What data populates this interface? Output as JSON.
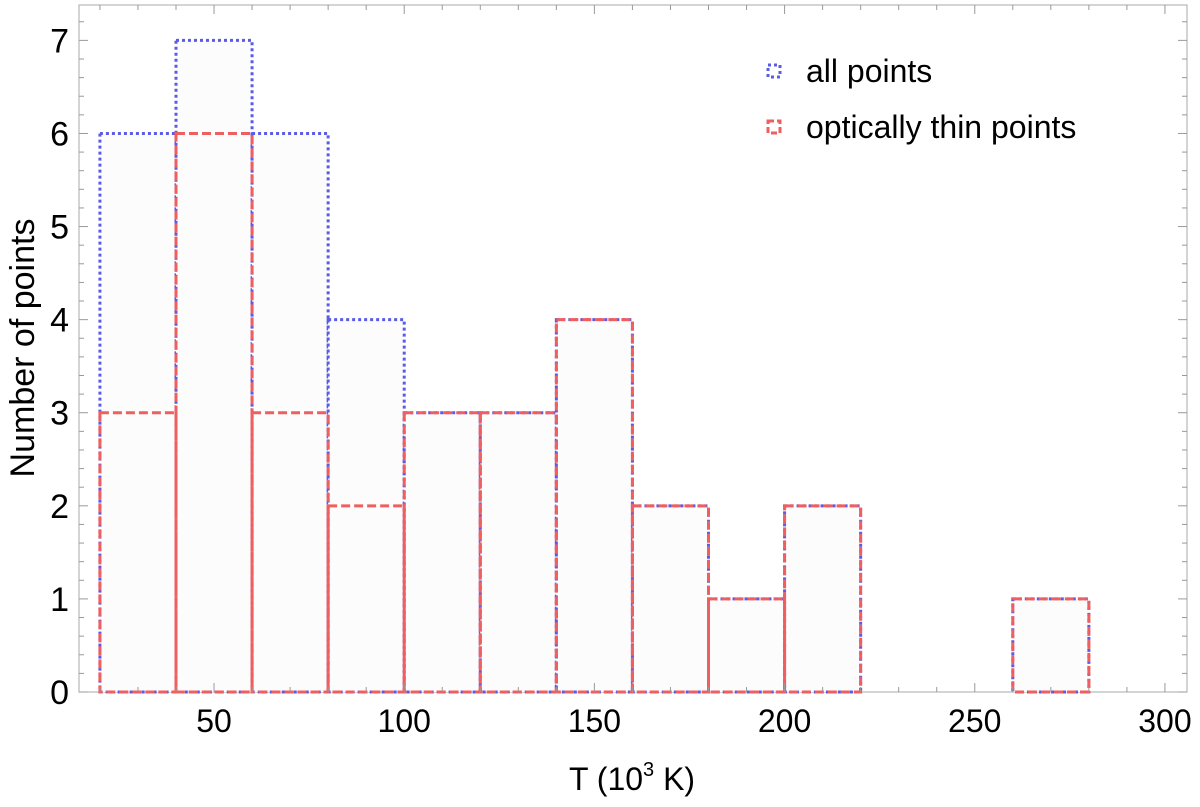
{
  "chart_data": {
    "type": "bar",
    "subtype": "histogram",
    "title": "",
    "xlabel": "T  (10³ K)",
    "xlabel_base": "T  (10",
    "xlabel_sup": "3",
    "xlabel_unit": " K)",
    "ylabel": "Number  of  points",
    "xlim": [
      14.5,
      305.8
    ],
    "ylim": [
      0,
      7.38
    ],
    "x_ticks": [
      50,
      100,
      150,
      200,
      250,
      300
    ],
    "y_ticks": [
      0,
      1,
      2,
      3,
      4,
      5,
      6,
      7
    ],
    "bin_edges": [
      [
        20,
        40
      ],
      [
        40,
        60
      ],
      [
        60,
        80
      ],
      [
        80,
        100
      ],
      [
        100,
        120
      ],
      [
        120,
        140
      ],
      [
        140,
        160
      ],
      [
        160,
        180
      ],
      [
        180,
        200
      ],
      [
        200,
        220
      ],
      [
        260,
        280
      ]
    ],
    "series": [
      {
        "name": "all points",
        "values": [
          6,
          7,
          6,
          4,
          3,
          3,
          4,
          2,
          1,
          2,
          1
        ],
        "color": "#5b5be8",
        "style": "dotted"
      },
      {
        "name": "optically thin points",
        "values": [
          3,
          6,
          3,
          2,
          3,
          3,
          4,
          2,
          1,
          2,
          1
        ],
        "color": "#ef5f5f",
        "style": "dashed"
      }
    ],
    "legend_position": "top-right",
    "grid": false
  }
}
